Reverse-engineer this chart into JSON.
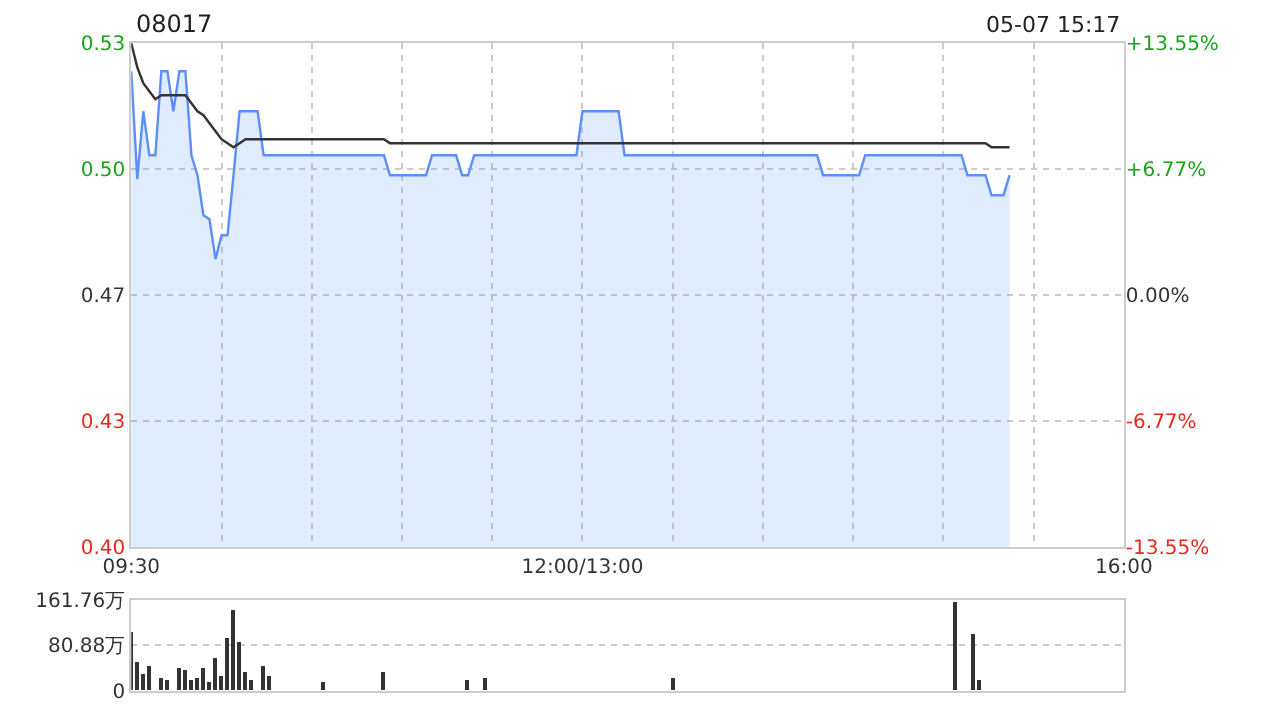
{
  "chart_data": [
    {
      "type": "area",
      "title": "08017",
      "annotations": [
        "05-07 15:17"
      ],
      "categories": [
        "09:30",
        null,
        null,
        null,
        null,
        null,
        null,
        null,
        null,
        null,
        null,
        null,
        null,
        null,
        null,
        null,
        null,
        null,
        null,
        null,
        null,
        null,
        null,
        null,
        null,
        null,
        null,
        null,
        null,
        null,
        null,
        null,
        null,
        null,
        null,
        null,
        null,
        null,
        null,
        null,
        null,
        null,
        null,
        null,
        null,
        null,
        null,
        null,
        null,
        null,
        null,
        null,
        null,
        null,
        null,
        null,
        null,
        null,
        null,
        null,
        null,
        null,
        null,
        null,
        null,
        null,
        null,
        null,
        null,
        null,
        null,
        null,
        null,
        null,
        null,
        "12:00/13:00",
        null,
        null,
        null,
        null,
        null,
        null,
        null,
        null,
        null,
        null,
        null,
        null,
        null,
        null,
        null,
        null,
        null,
        null,
        null,
        null,
        null,
        null,
        null,
        null,
        null,
        null,
        null,
        null,
        null,
        null,
        null,
        null,
        null,
        null,
        null,
        null,
        null,
        null,
        null,
        null,
        null,
        null,
        null,
        null,
        null,
        null,
        null,
        null,
        null,
        null,
        null,
        null,
        null,
        null,
        null,
        null,
        null,
        null,
        null,
        null,
        null,
        null,
        null,
        null,
        null,
        null,
        null,
        null,
        null,
        null,
        null,
        null,
        null,
        null,
        null,
        null,
        null,
        null,
        null,
        null,
        null,
        null,
        null,
        null,
        null,
        null,
        null,
        null,
        null,
        "16:00"
      ],
      "ylim": [
        0.4029,
        0.5291
      ],
      "yticks": [
        {
          "value": 0.4029,
          "label": "0.40"
        },
        {
          "value": 0.4345,
          "label": "0.43"
        },
        {
          "value": 0.466,
          "label": "0.47"
        },
        {
          "value": 0.4975,
          "label": "0.50"
        },
        {
          "value": 0.5291,
          "label": "0.53"
        }
      ],
      "y2lim": [
        -13.55,
        13.55
      ],
      "y2ticks": [
        {
          "value": -13.55,
          "label": "-13.55%"
        },
        {
          "value": -6.77,
          "label": "-6.77%"
        },
        {
          "value": 0,
          "label": "0.00%"
        },
        {
          "value": 6.77,
          "label": "+6.77%"
        },
        {
          "value": 13.55,
          "label": "+13.55%"
        }
      ],
      "grid": true,
      "marker": "none",
      "series": [
        {
          "type": "area",
          "color": "#5b8ff9",
          "values": [
            0.522,
            0.495,
            0.512,
            0.501,
            0.501,
            0.522,
            0.522,
            0.512,
            0.522,
            0.522,
            0.501,
            0.496,
            0.486,
            0.485,
            0.475,
            0.481,
            0.481,
            0.496,
            0.512,
            0.512,
            0.512,
            0.512,
            0.501,
            0.501,
            0.501,
            0.501,
            0.501,
            0.501,
            0.501,
            0.501,
            0.501,
            0.501,
            0.501,
            0.501,
            0.501,
            0.501,
            0.501,
            0.501,
            0.501,
            0.501,
            0.501,
            0.501,
            0.501,
            0.496,
            0.496,
            0.496,
            0.496,
            0.496,
            0.496,
            0.496,
            0.501,
            0.501,
            0.501,
            0.501,
            0.501,
            0.496,
            0.496,
            0.501,
            0.501,
            0.501,
            0.501,
            0.501,
            0.501,
            0.501,
            0.501,
            0.501,
            0.501,
            0.501,
            0.501,
            0.501,
            0.501,
            0.501,
            0.501,
            0.501,
            0.501,
            0.512,
            0.512,
            0.512,
            0.512,
            0.512,
            0.512,
            0.512,
            0.501,
            0.501,
            0.501,
            0.501,
            0.501,
            0.501,
            0.501,
            0.501,
            0.501,
            0.501,
            0.501,
            0.501,
            0.501,
            0.501,
            0.501,
            0.501,
            0.501,
            0.501,
            0.501,
            0.501,
            0.501,
            0.501,
            0.501,
            0.501,
            0.501,
            0.501,
            0.501,
            0.501,
            0.501,
            0.501,
            0.501,
            0.501,
            0.501,
            0.496,
            0.496,
            0.496,
            0.496,
            0.496,
            0.496,
            0.496,
            0.501,
            0.501,
            0.501,
            0.501,
            0.501,
            0.501,
            0.501,
            0.501,
            0.501,
            0.501,
            0.501,
            0.501,
            0.501,
            0.501,
            0.501,
            0.501,
            0.501,
            0.496,
            0.496,
            0.496,
            0.496,
            0.491,
            0.491,
            0.491,
            0.496,
            null,
            null,
            null,
            null,
            null,
            null,
            null,
            null,
            null,
            null,
            null,
            null,
            null,
            null,
            null,
            null,
            null,
            null,
            null
          ]
        },
        {
          "type": "line",
          "color": "#333333",
          "values": [
            0.529,
            0.523,
            0.519,
            0.517,
            0.515,
            0.516,
            0.516,
            0.516,
            0.516,
            0.516,
            0.514,
            0.512,
            0.511,
            0.509,
            0.507,
            0.505,
            0.504,
            0.503,
            0.504,
            0.505,
            0.505,
            0.505,
            0.505,
            0.505,
            0.505,
            0.505,
            0.505,
            0.505,
            0.505,
            0.505,
            0.505,
            0.505,
            0.505,
            0.505,
            0.505,
            0.505,
            0.505,
            0.505,
            0.505,
            0.505,
            0.505,
            0.505,
            0.505,
            0.504,
            0.504,
            0.504,
            0.504,
            0.504,
            0.504,
            0.504,
            0.504,
            0.504,
            0.504,
            0.504,
            0.504,
            0.504,
            0.504,
            0.504,
            0.504,
            0.504,
            0.504,
            0.504,
            0.504,
            0.504,
            0.504,
            0.504,
            0.504,
            0.504,
            0.504,
            0.504,
            0.504,
            0.504,
            0.504,
            0.504,
            0.504,
            0.504,
            0.504,
            0.504,
            0.504,
            0.504,
            0.504,
            0.504,
            0.504,
            0.504,
            0.504,
            0.504,
            0.504,
            0.504,
            0.504,
            0.504,
            0.504,
            0.504,
            0.504,
            0.504,
            0.504,
            0.504,
            0.504,
            0.504,
            0.504,
            0.504,
            0.504,
            0.504,
            0.504,
            0.504,
            0.504,
            0.504,
            0.504,
            0.504,
            0.504,
            0.504,
            0.504,
            0.504,
            0.504,
            0.504,
            0.504,
            0.504,
            0.504,
            0.504,
            0.504,
            0.504,
            0.504,
            0.504,
            0.504,
            0.504,
            0.504,
            0.504,
            0.504,
            0.504,
            0.504,
            0.504,
            0.504,
            0.504,
            0.504,
            0.504,
            0.504,
            0.504,
            0.504,
            0.504,
            0.504,
            0.504,
            0.504,
            0.504,
            0.504,
            0.503,
            0.503,
            0.503,
            0.503,
            null,
            null,
            null,
            null,
            null,
            null,
            null,
            null,
            null,
            null,
            null,
            null,
            null,
            null,
            null,
            null,
            null,
            null,
            null
          ]
        }
      ]
    },
    {
      "type": "bar",
      "tick_labels": "y",
      "categories": [
        null,
        null,
        null,
        null,
        null,
        null,
        null,
        null,
        null,
        null,
        null,
        null,
        null,
        null,
        null,
        null,
        null,
        null,
        null,
        null,
        null,
        null,
        null,
        null,
        null,
        null,
        null,
        null,
        null,
        null,
        null,
        null,
        null,
        null,
        null,
        null,
        null,
        null,
        null,
        null,
        null,
        null,
        null,
        null,
        null,
        null,
        null,
        null,
        null,
        null,
        null,
        null,
        null,
        null,
        null,
        null,
        null,
        null,
        null,
        null,
        null,
        null,
        null,
        null,
        null,
        null,
        null,
        null,
        null,
        null,
        null,
        null,
        null,
        null,
        null,
        null,
        null,
        null,
        null,
        null,
        null,
        null,
        null,
        null,
        null,
        null,
        null,
        null,
        null,
        null,
        null,
        null,
        null,
        null,
        null,
        null,
        null,
        null,
        null,
        null,
        null,
        null,
        null,
        null,
        null,
        null,
        null,
        null,
        null,
        null,
        null,
        null,
        null,
        null,
        null,
        null,
        null,
        null,
        null,
        null,
        null,
        null,
        null,
        null,
        null,
        null,
        null,
        null,
        null,
        null,
        null,
        null,
        null,
        null,
        null,
        null,
        null,
        null,
        null,
        null,
        null,
        null,
        null,
        null,
        null,
        null,
        null,
        null,
        null,
        null,
        null,
        null,
        null,
        null,
        null,
        null,
        null,
        null,
        null,
        null,
        null,
        null,
        null,
        null,
        null,
        null
      ],
      "ylim": [
        0,
        163
      ],
      "yticks": [
        0,
        {
          "value": 80.88,
          "label": "80.88万"
        },
        {
          "value": 161.76,
          "label": "161.76万"
        }
      ],
      "grid": "y",
      "series": [
        {
          "color": "#333333",
          "values": [
            104,
            53,
            30,
            43,
            null,
            23,
            19,
            null,
            40,
            36,
            20,
            23,
            42,
            16,
            58,
            26,
            94,
            144,
            88,
            35,
            19,
            null,
            46,
            26,
            null,
            null,
            null,
            null,
            null,
            null,
            null,
            null,
            15,
            null,
            null,
            null,
            null,
            null,
            null,
            null,
            null,
            null,
            35,
            null,
            null,
            null,
            null,
            null,
            null,
            null,
            null,
            null,
            null,
            null,
            null,
            null,
            19,
            null,
            null,
            22,
            null,
            null,
            null,
            null,
            null,
            null,
            null,
            null,
            null,
            null,
            null,
            null,
            null,
            null,
            null,
            null,
            null,
            null,
            null,
            null,
            null,
            null,
            null,
            null,
            null,
            null,
            null,
            null,
            null,
            null,
            23,
            null,
            null,
            null,
            null,
            null,
            null,
            null,
            null,
            null,
            null,
            null,
            null,
            null,
            null,
            null,
            null,
            null,
            null,
            null,
            null,
            null,
            null,
            null,
            null,
            null,
            null,
            null,
            null,
            null,
            null,
            null,
            null,
            null,
            null,
            null,
            null,
            null,
            null,
            null,
            null,
            null,
            null,
            null,
            null,
            null,
            null,
            161,
            null,
            null,
            102,
            19,
            null,
            null,
            null,
            null,
            null,
            null,
            null,
            null,
            null,
            null,
            null,
            null,
            null,
            null,
            null,
            null,
            null,
            null,
            null,
            null,
            null,
            null,
            null,
            null
          ]
        }
      ]
    }
  ]
}
